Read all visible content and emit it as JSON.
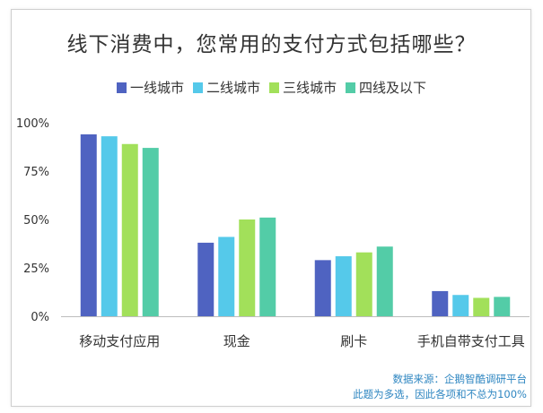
{
  "chart_data": {
    "type": "bar",
    "title": "线下消费中，您常用的支付方式包括哪些？",
    "categories": [
      "移动支付应用",
      "现金",
      "刷卡",
      "手机自带支付工具"
    ],
    "series": [
      {
        "name": "一线城市",
        "color": "#4f63c1",
        "values": [
          94,
          38,
          29,
          13
        ]
      },
      {
        "name": "二线城市",
        "color": "#55c9ea",
        "values": [
          93,
          41,
          31,
          11
        ]
      },
      {
        "name": "三线城市",
        "color": "#a2e05a",
        "values": [
          89,
          50,
          33,
          9.5
        ]
      },
      {
        "name": "四线及以下",
        "color": "#53cca7",
        "values": [
          87,
          51,
          36,
          10
        ]
      }
    ],
    "yticks": [
      "0%",
      "25%",
      "50%",
      "75%",
      "100%"
    ],
    "ylim": [
      0,
      100
    ],
    "legend_position": "top-center",
    "grid": false
  },
  "footer": {
    "source": "数据来源：企鹅智酷调研平台",
    "note": "此题为多选，因此各项和不总为100%"
  }
}
